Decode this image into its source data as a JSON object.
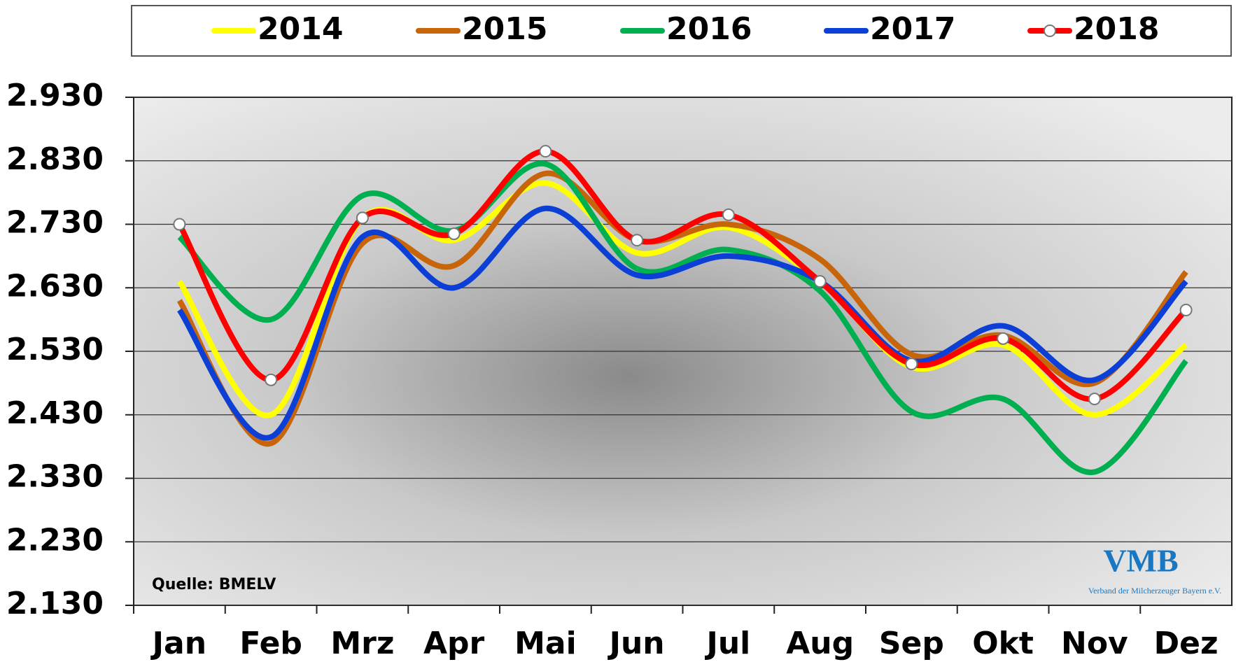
{
  "chart_data": {
    "type": "line",
    "categories": [
      "Jan",
      "Feb",
      "Mrz",
      "Apr",
      "Mai",
      "Jun",
      "Jul",
      "Aug",
      "Sep",
      "Okt",
      "Nov",
      "Dez"
    ],
    "series": [
      {
        "name": "2014",
        "color": "#ffff00",
        "values": [
          2640,
          2430,
          2740,
          2705,
          2795,
          2685,
          2725,
          2640,
          2505,
          2540,
          2430,
          2540
        ]
      },
      {
        "name": "2015",
        "color": "#c8640a",
        "values": [
          2610,
          2385,
          2700,
          2665,
          2810,
          2705,
          2730,
          2675,
          2525,
          2555,
          2480,
          2655
        ]
      },
      {
        "name": "2016",
        "color": "#00b050",
        "values": [
          2710,
          2580,
          2775,
          2720,
          2825,
          2660,
          2690,
          2625,
          2435,
          2455,
          2340,
          2515
        ]
      },
      {
        "name": "2017",
        "color": "#0b3fd6",
        "values": [
          2595,
          2395,
          2710,
          2630,
          2755,
          2650,
          2680,
          2640,
          2515,
          2570,
          2485,
          2640
        ]
      },
      {
        "name": "2018",
        "color": "#ff0000",
        "markers": true,
        "values": [
          2730,
          2485,
          2740,
          2715,
          2845,
          2705,
          2745,
          2640,
          2510,
          2550,
          2455,
          2595
        ]
      }
    ],
    "ylim": [
      2130,
      2930
    ],
    "yticks": [
      {
        "value": 2130,
        "label": "2.130"
      },
      {
        "value": 2230,
        "label": "2.230"
      },
      {
        "value": 2330,
        "label": "2.330"
      },
      {
        "value": 2430,
        "label": "2.430"
      },
      {
        "value": 2530,
        "label": "2.530"
      },
      {
        "value": 2630,
        "label": "2.630"
      },
      {
        "value": 2730,
        "label": "2.730"
      },
      {
        "value": 2830,
        "label": "2.830"
      },
      {
        "value": 2930,
        "label": "2.930"
      }
    ],
    "grid": true,
    "annotations": {
      "source": "Quelle: BMELV",
      "logo": "VMB",
      "logo_subtitle": "Verband der Milcherzeuger Bayern e.V."
    }
  }
}
